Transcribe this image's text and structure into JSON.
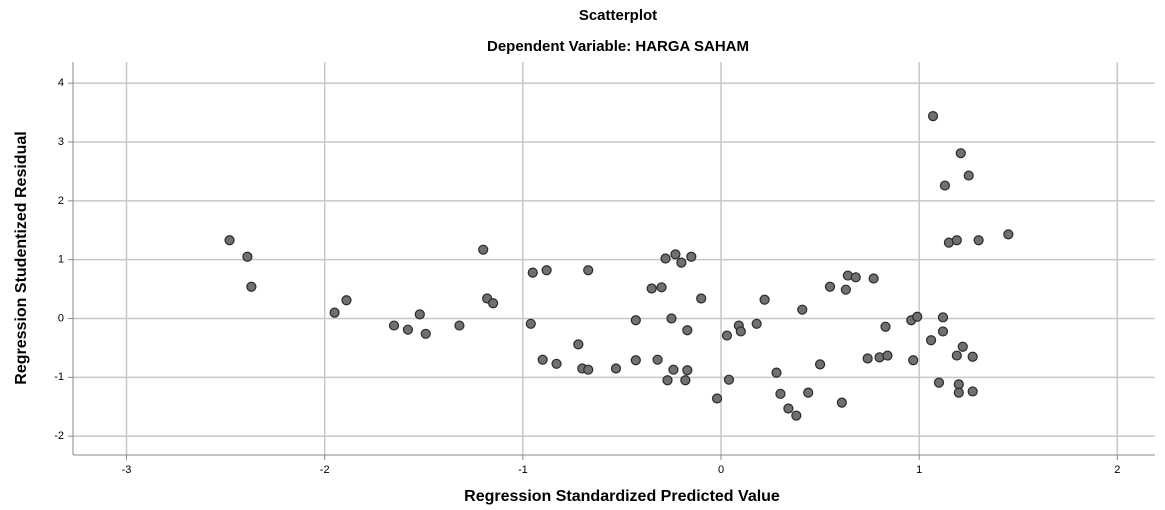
{
  "chart_data": {
    "type": "scatter",
    "title": "Scatterplot",
    "subtitle": "Dependent Variable: HARGA SAHAM",
    "xlabel": "Regression Standardized Predicted Value",
    "ylabel": "Regression Studentized Residual",
    "color": "#707070",
    "grid": true,
    "xlim": [
      -3.27,
      2.19
    ],
    "ylim": [
      -2.32,
      4.36
    ],
    "xticks": [
      -3,
      -2,
      -1,
      0,
      1,
      2
    ],
    "yticks": [
      -2,
      -1,
      0,
      1,
      2,
      3,
      4
    ],
    "x": [
      -2.48,
      -2.39,
      -2.37,
      -1.95,
      -1.89,
      -1.65,
      -1.58,
      -1.52,
      -1.49,
      -1.32,
      -1.2,
      -1.18,
      -1.15,
      -0.96,
      -0.95,
      -0.9,
      -0.88,
      -0.83,
      -0.72,
      -0.7,
      -0.67,
      -0.67,
      -0.53,
      -0.43,
      -0.43,
      -0.35,
      -0.32,
      -0.3,
      -0.28,
      -0.27,
      -0.25,
      -0.24,
      -0.23,
      -0.2,
      -0.18,
      -0.17,
      -0.17,
      -0.15,
      -0.1,
      -0.02,
      0.03,
      0.04,
      0.09,
      0.1,
      0.18,
      0.22,
      0.28,
      0.3,
      0.34,
      0.38,
      0.41,
      0.44,
      0.5,
      0.55,
      0.61,
      0.63,
      0.64,
      0.68,
      0.74,
      0.77,
      0.8,
      0.83,
      0.84,
      0.96,
      0.97,
      0.99,
      1.06,
      1.07,
      1.1,
      1.12,
      1.12,
      1.13,
      1.15,
      1.19,
      1.19,
      1.2,
      1.2,
      1.21,
      1.22,
      1.25,
      1.27,
      1.27,
      1.3,
      1.45
    ],
    "y": [
      1.33,
      1.05,
      0.54,
      0.1,
      0.31,
      -0.12,
      -0.19,
      0.07,
      -0.26,
      -0.12,
      1.17,
      0.34,
      0.26,
      -0.09,
      0.78,
      -0.7,
      0.82,
      -0.77,
      -0.44,
      -0.85,
      0.82,
      -0.87,
      -0.85,
      -0.03,
      -0.71,
      0.51,
      -0.7,
      0.53,
      1.02,
      -1.05,
      0.0,
      -0.87,
      1.09,
      0.95,
      -1.05,
      -0.88,
      -0.2,
      1.05,
      0.34,
      -1.36,
      -0.29,
      -1.04,
      -0.12,
      -0.22,
      -0.09,
      0.32,
      -0.92,
      -1.28,
      -1.53,
      -1.65,
      0.15,
      -1.26,
      -0.78,
      0.54,
      -1.43,
      0.49,
      0.73,
      0.7,
      -0.68,
      0.68,
      -0.66,
      -0.14,
      -0.63,
      -0.03,
      -0.71,
      0.03,
      -0.37,
      3.44,
      -1.09,
      0.02,
      -0.22,
      2.26,
      1.29,
      1.33,
      -0.63,
      -1.12,
      -1.26,
      2.81,
      -0.48,
      2.43,
      -1.24,
      -0.65,
      1.33,
      1.43
    ]
  }
}
